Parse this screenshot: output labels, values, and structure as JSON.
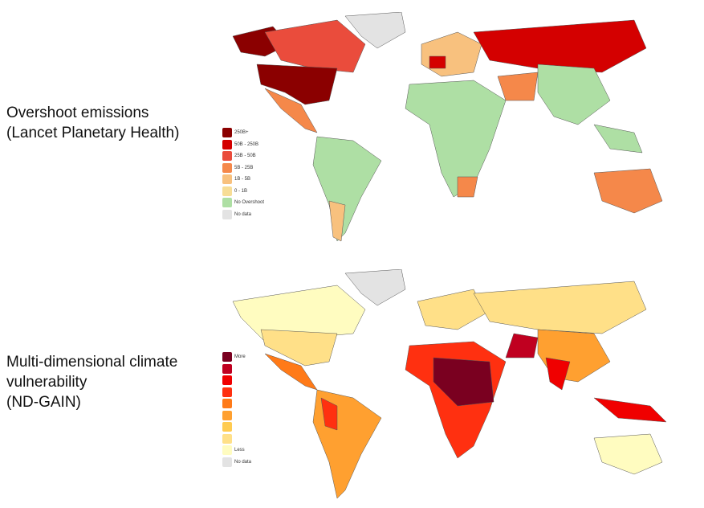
{
  "panels": [
    {
      "title_line1": "Overshoot emissions",
      "title_line2": "(Lancet Planetary Health)",
      "legend": [
        {
          "label": "250B+",
          "color": "#8b0000"
        },
        {
          "label": "50B - 250B",
          "color": "#d40000"
        },
        {
          "label": "25B - 50B",
          "color": "#ea4c3c"
        },
        {
          "label": "5B - 25B",
          "color": "#f5884a"
        },
        {
          "label": "1B - 5B",
          "color": "#f8c17e"
        },
        {
          "label": "0 - 1B",
          "color": "#f7dd96"
        },
        {
          "label": "No Overshoot",
          "color": "#aedfa4"
        },
        {
          "label": "No data",
          "color": "#e3e3e3"
        }
      ]
    },
    {
      "title_line1": "Multi-dimensional climate",
      "title_line2": "vulnerability",
      "title_line3": "(ND-GAIN)",
      "legend": [
        {
          "label": "More",
          "color": "#7a0020"
        },
        {
          "label": "",
          "color": "#c00020"
        },
        {
          "label": "",
          "color": "#f00000"
        },
        {
          "label": "",
          "color": "#ff3010"
        },
        {
          "label": "",
          "color": "#ff7a18"
        },
        {
          "label": "",
          "color": "#ffa030"
        },
        {
          "label": "",
          "color": "#ffcb50"
        },
        {
          "label": "",
          "color": "#ffe088"
        },
        {
          "label": "Less",
          "color": "#fffcc0"
        },
        {
          "label": "No data",
          "color": "#e3e3e3"
        }
      ]
    }
  ]
}
